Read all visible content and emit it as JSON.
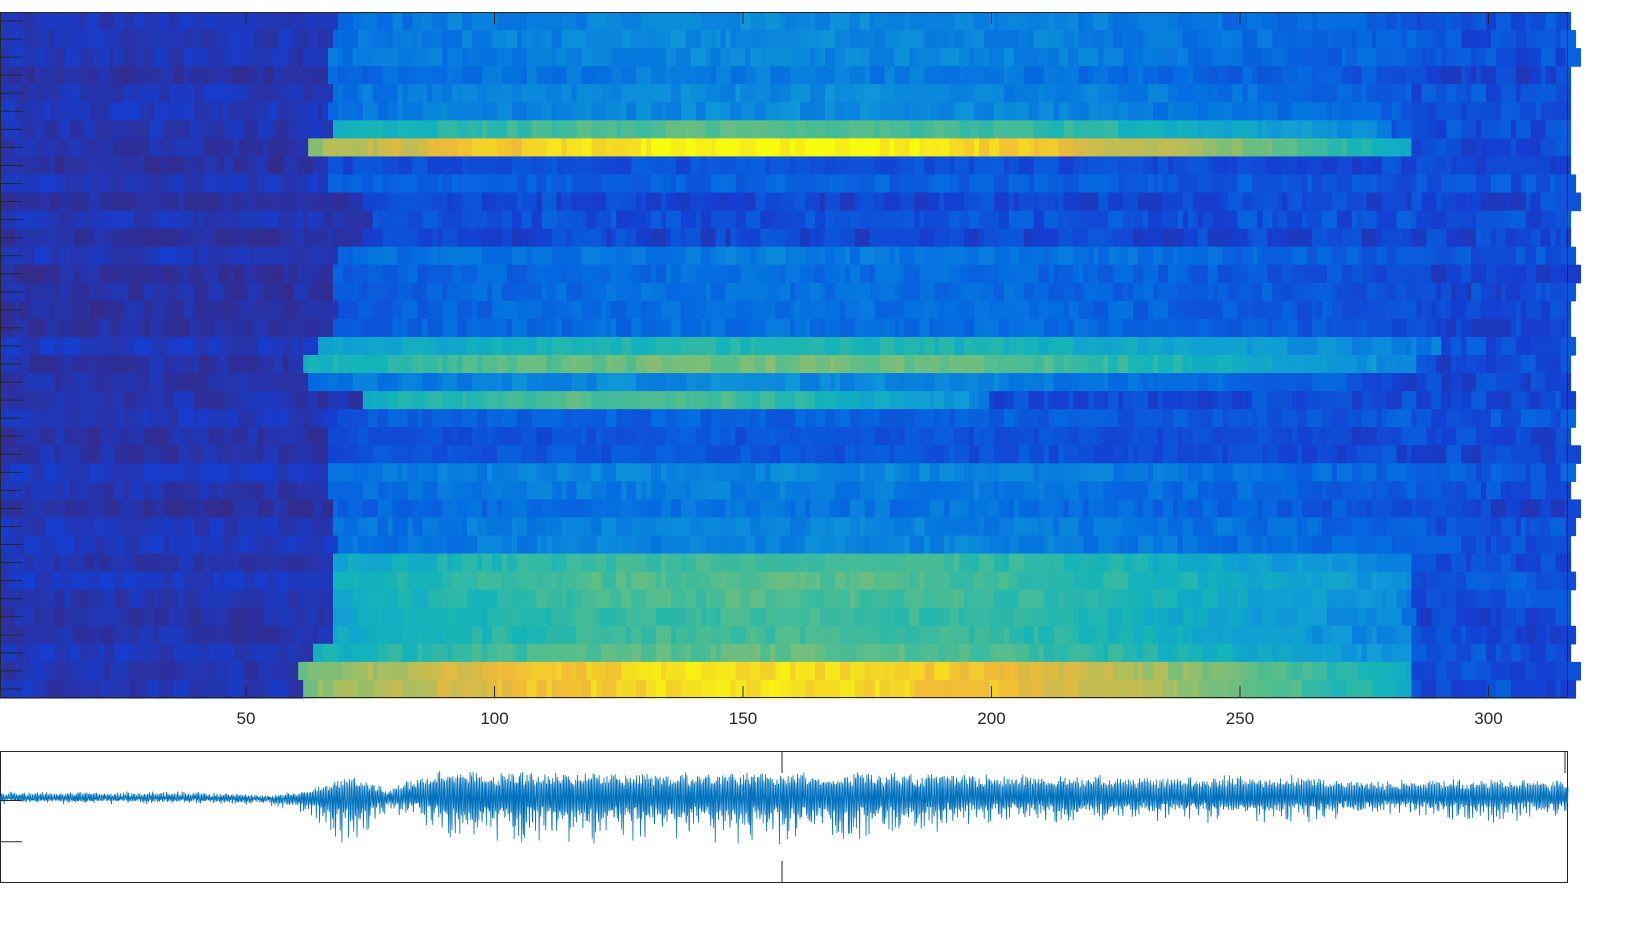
{
  "chart_data": [
    {
      "type": "heatmap",
      "title": "",
      "xlabel": "",
      "ylabel": "",
      "xlim": [
        0.5,
        316
      ],
      "x_ticks": [
        50,
        100,
        150,
        200,
        250,
        300
      ],
      "x_tick_labels": [
        "50",
        "100",
        "150",
        "200",
        "250",
        "300"
      ],
      "rows": 38,
      "columns": 316,
      "colormap": "parula",
      "row_bands": [
        {
          "rows": [
            0,
            5
          ],
          "onset": 68,
          "end": 285,
          "peak": 0.32
        },
        {
          "rows": [
            6,
            6
          ],
          "onset": 68,
          "end": 280,
          "peak": 0.62
        },
        {
          "rows": [
            7,
            7
          ],
          "onset": 62,
          "end": 285,
          "peak": 1.0
        },
        {
          "rows": [
            8,
            9
          ],
          "onset": 68,
          "end": 280,
          "peak": 0.2
        },
        {
          "rows": [
            10,
            12
          ],
          "onset": 75,
          "end": 105,
          "peak": 0.18
        },
        {
          "rows": [
            13,
            17
          ],
          "onset": 68,
          "end": 290,
          "peak": 0.28
        },
        {
          "rows": [
            18,
            18
          ],
          "onset": 65,
          "end": 290,
          "peak": 0.5
        },
        {
          "rows": [
            19,
            19
          ],
          "onset": 62,
          "end": 285,
          "peak": 0.68
        },
        {
          "rows": [
            20,
            20
          ],
          "onset": 62,
          "end": 275,
          "peak": 0.35
        },
        {
          "rows": [
            21,
            21
          ],
          "onset": 75,
          "end": 200,
          "peak": 0.62
        },
        {
          "rows": [
            22,
            24
          ],
          "onset": 68,
          "end": 280,
          "peak": 0.2
        },
        {
          "rows": [
            25,
            29
          ],
          "onset": 68,
          "end": 290,
          "peak": 0.3
        },
        {
          "rows": [
            30,
            34
          ],
          "onset": 68,
          "end": 285,
          "peak": 0.6
        },
        {
          "rows": [
            35,
            35
          ],
          "onset": 65,
          "end": 285,
          "peak": 0.62
        },
        {
          "rows": [
            36,
            37
          ],
          "onset": 62,
          "end": 285,
          "peak": 0.95
        }
      ],
      "colors": {
        "low": "#352a87",
        "mid": "#0f9bd7",
        "high": "#f9fb0e"
      }
    },
    {
      "type": "line",
      "title": "",
      "xlabel": "",
      "ylabel": "",
      "xlim": [
        0,
        316
      ],
      "ylim": [
        -1,
        0.6
      ],
      "series": [
        {
          "color": "#0072bd",
          "envelope_x": [
            0,
            40,
            55,
            62,
            68,
            72,
            75,
            78,
            85,
            90,
            100,
            120,
            150,
            180,
            200,
            230,
            260,
            280,
            300,
            316
          ],
          "envelope_upper": [
            0.08,
            0.08,
            0.03,
            0.1,
            0.25,
            0.3,
            0.22,
            0.1,
            0.3,
            0.35,
            0.32,
            0.32,
            0.33,
            0.32,
            0.3,
            0.28,
            0.28,
            0.22,
            0.25,
            0.22
          ],
          "envelope_lower": [
            -0.05,
            -0.05,
            -0.1,
            -0.2,
            -0.5,
            -0.75,
            -0.4,
            -0.15,
            -0.3,
            -0.6,
            -0.6,
            -0.55,
            -0.58,
            -0.5,
            -0.3,
            -0.3,
            -0.32,
            -0.2,
            -0.3,
            -0.2
          ],
          "baseline": 0.02
        }
      ]
    }
  ]
}
